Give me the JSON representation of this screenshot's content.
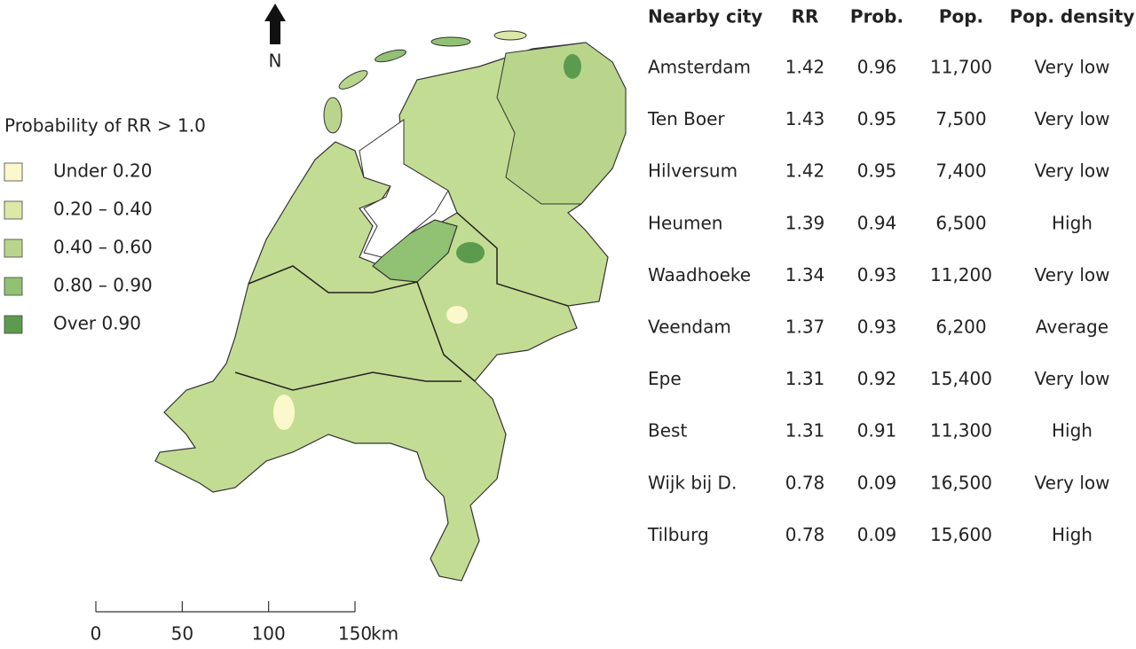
{
  "north_arrow": {
    "label": "N"
  },
  "legend": {
    "title": "Probability of RR > 1.0",
    "items": [
      {
        "label": "Under 0.20",
        "color": "#fbf8cc"
      },
      {
        "label": "0.20 – 0.40",
        "color": "#dbe8a8"
      },
      {
        "label": "0.40 – 0.60",
        "color": "#b9d58c"
      },
      {
        "label": "0.80 – 0.90",
        "color": "#91c173"
      },
      {
        "label": "Over 0.90",
        "color": "#5c9b4d"
      }
    ]
  },
  "scale_bar": {
    "ticks": [
      0,
      50,
      100,
      150
    ],
    "unit": "km"
  },
  "table": {
    "header": [
      "Nearby city",
      "RR",
      "Prob.",
      "Pop.",
      "Pop. density"
    ],
    "rows": [
      [
        "Amsterdam",
        "1.42",
        "0.96",
        "11,700",
        "Very low"
      ],
      [
        "Ten Boer",
        "1.43",
        "0.95",
        "7,500",
        "Very low"
      ],
      [
        "Hilversum",
        "1.42",
        "0.95",
        "7,400",
        "Very low"
      ],
      [
        "Heumen",
        "1.39",
        "0.94",
        "6,500",
        "High"
      ],
      [
        "Waadhoeke",
        "1.34",
        "0.93",
        "11,200",
        "Very low"
      ],
      [
        "Veendam",
        "1.37",
        "0.93",
        "6,200",
        "Average"
      ],
      [
        "Epe",
        "1.31",
        "0.92",
        "15,400",
        "Very low"
      ],
      [
        "Best",
        "1.31",
        "0.91",
        "11,300",
        "High"
      ],
      [
        "Wijk bij D.",
        "0.78",
        "0.09",
        "16,500",
        "Very low"
      ],
      [
        "Tilburg",
        "0.78",
        "0.09",
        "15,600",
        "High"
      ]
    ]
  }
}
